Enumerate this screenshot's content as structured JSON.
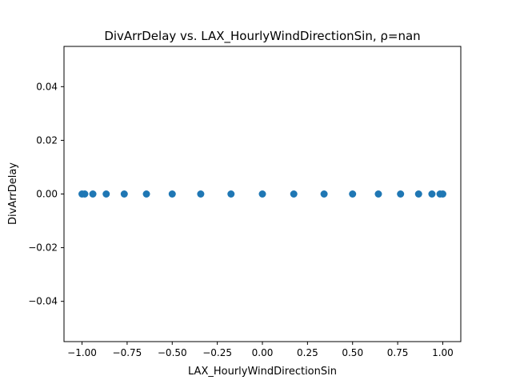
{
  "chart_data": {
    "type": "scatter",
    "title": "DivArrDelay vs. LAX_HourlyWindDirectionSin, ρ=nan",
    "xlabel": "LAX_HourlyWindDirectionSin",
    "ylabel": "DivArrDelay",
    "xlim": [
      -1.1,
      1.1
    ],
    "ylim": [
      -0.055,
      0.055
    ],
    "xticks": [
      -1.0,
      -0.75,
      -0.5,
      -0.25,
      0.0,
      0.25,
      0.5,
      0.75,
      1.0
    ],
    "xtick_labels": [
      "−1.00",
      "−0.75",
      "−0.50",
      "−0.25",
      "0.00",
      "0.25",
      "0.50",
      "0.75",
      "1.00"
    ],
    "yticks": [
      -0.04,
      -0.02,
      0.0,
      0.02,
      0.04
    ],
    "ytick_labels": [
      "−0.04",
      "−0.02",
      "0.00",
      "0.02",
      "0.04"
    ],
    "grid": false,
    "marker_color": "#1f77b4",
    "x": [
      -1.0,
      -0.985,
      -0.94,
      -0.866,
      -0.766,
      -0.643,
      -0.5,
      -0.342,
      -0.174,
      0.0,
      0.174,
      0.342,
      0.5,
      0.643,
      0.766,
      0.866,
      0.94,
      0.985,
      1.0
    ],
    "y": [
      0,
      0,
      0,
      0,
      0,
      0,
      0,
      0,
      0,
      0,
      0,
      0,
      0,
      0,
      0,
      0,
      0,
      0,
      0
    ]
  }
}
